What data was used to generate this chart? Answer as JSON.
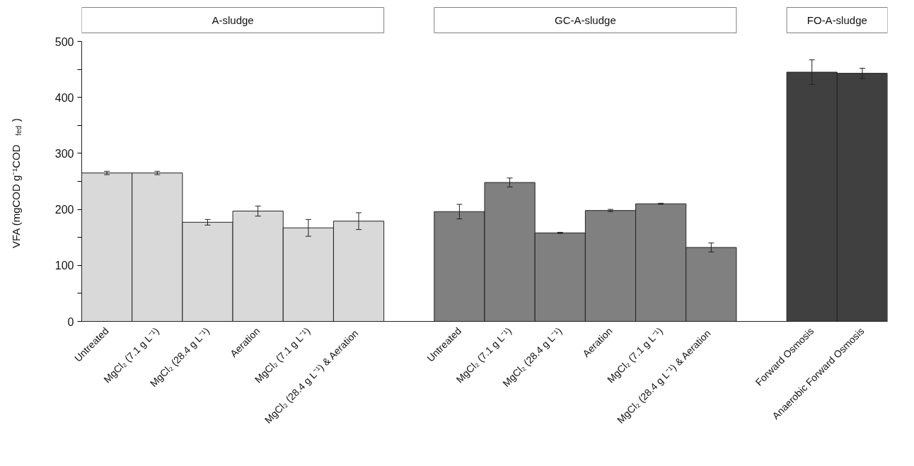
{
  "chart_data": {
    "type": "bar",
    "ylabel": "VFA (mgCOD g⁻¹COD$_{fed}$)",
    "annotations": [
      "A-sludge",
      "GC-A-sludge",
      "FO-A-sludge"
    ],
    "categories": [
      "Untreated",
      "MgCl₂ (7.1 g L⁻¹)",
      "MgCl₂ (28.4 g L⁻¹)",
      "Aeration",
      "MgCl₂ (7.1 g L⁻¹)",
      "MgCl₂  (28.4 g L⁻¹) & Aeration",
      null,
      "Untreated",
      "MgCl₂ (7.1 g L⁻¹)",
      "MgCl₂ (28.4 g L⁻¹)",
      "Aeration",
      "MgCl₂ (7.1 g L⁻¹)",
      "MgCl₂  (28.4 g L⁻¹) & Aeration",
      null,
      "Forward Osmosis",
      "Anaerobic Forward Osmosis"
    ],
    "values": [
      265,
      265,
      177,
      197,
      167,
      179,
      null,
      196,
      248,
      158,
      198,
      210,
      132,
      null,
      445,
      443
    ],
    "errors": [
      3,
      3,
      5,
      9,
      15,
      15,
      null,
      13,
      8,
      1,
      2,
      1,
      8,
      null,
      22,
      9
    ],
    "colors": [
      "#d9d9d9",
      "#d9d9d9",
      "#d9d9d9",
      "#d9d9d9",
      "#d9d9d9",
      "#d9d9d9",
      null,
      "#808080",
      "#808080",
      "#808080",
      "#808080",
      "#808080",
      "#808080",
      null,
      "#404040",
      "#404040"
    ],
    "ylim": [
      0,
      500
    ],
    "yticks": [
      0,
      {
        "value": 50,
        "label": null
      },
      100,
      {
        "value": 150,
        "label": null
      },
      200,
      {
        "value": 250,
        "label": null
      },
      300,
      {
        "value": 350,
        "label": null
      },
      400,
      {
        "value": 450,
        "label": null
      },
      500
    ],
    "grid": false
  }
}
